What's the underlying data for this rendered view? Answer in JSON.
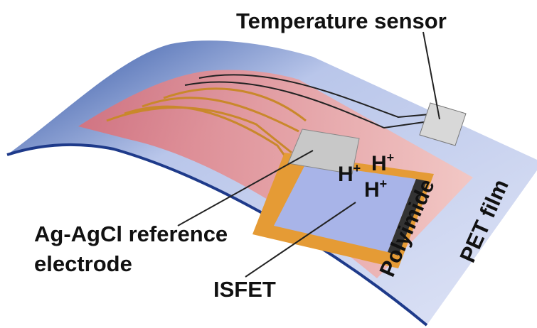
{
  "labels": {
    "temperature_sensor": "Temperature sensor",
    "reference_line1": "Ag-AgCl reference",
    "reference_line2": "electrode",
    "isfet": "ISFET",
    "polyimide": "Polyimide",
    "pet_film": "PET film"
  },
  "ions": [
    {
      "base": "H",
      "sup": "+"
    },
    {
      "base": "H",
      "sup": "+"
    },
    {
      "base": "H",
      "sup": "+"
    }
  ]
}
